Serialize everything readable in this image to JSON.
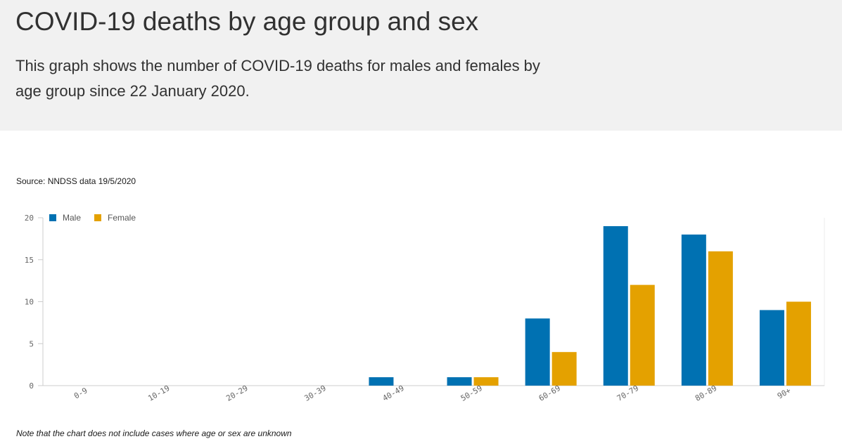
{
  "header": {
    "title": "COVID-19 deaths by age group and sex",
    "description": "This graph shows the number of COVID-19 deaths for males and females by age group since 22 January 2020."
  },
  "source": "Source: NNDSS data 19/5/2020",
  "note": "Note that the chart does not include cases where age or sex are unknown",
  "colors": {
    "male": "#0071b2",
    "female": "#e4a100",
    "header_bg": "#f1f1f1"
  },
  "chart_data": {
    "type": "bar",
    "categories": [
      "0-9",
      "10-19",
      "20-29",
      "30-39",
      "40-49",
      "50-59",
      "60-69",
      "70-79",
      "80-89",
      "90+"
    ],
    "series": [
      {
        "name": "Male",
        "values": [
          0,
          0,
          0,
          0,
          1,
          1,
          8,
          19,
          18,
          9
        ]
      },
      {
        "name": "Female",
        "values": [
          0,
          0,
          0,
          0,
          0,
          1,
          4,
          12,
          16,
          10
        ]
      }
    ],
    "yticks": [
      0,
      5,
      10,
      15,
      20
    ],
    "ylim": [
      0,
      20
    ],
    "legend_position": "top-left",
    "grid": false
  }
}
